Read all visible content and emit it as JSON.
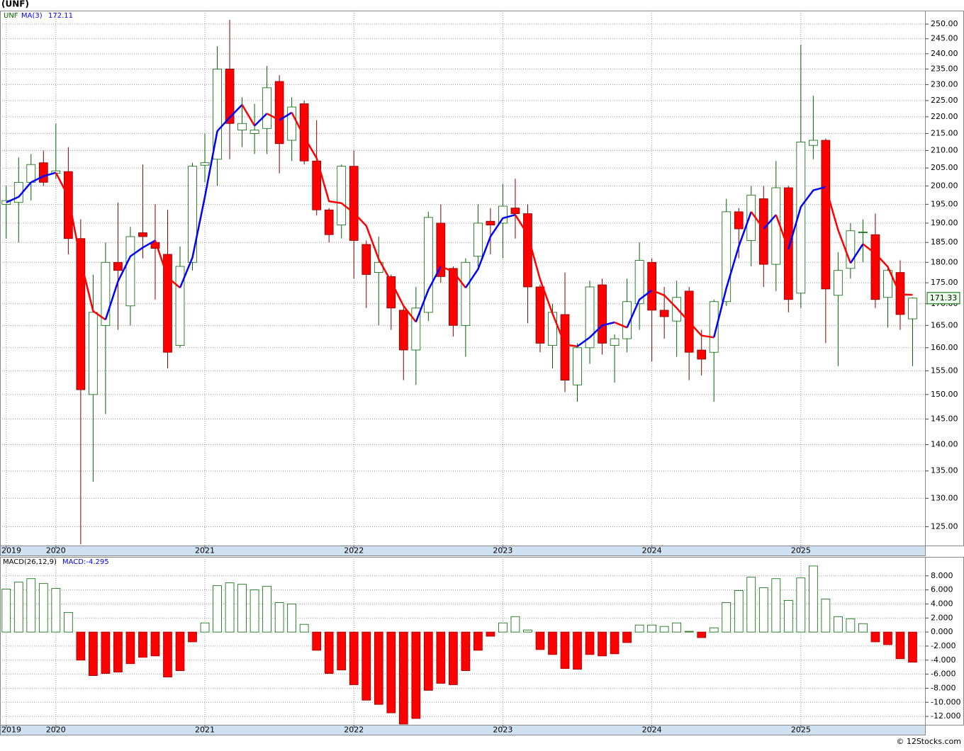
{
  "chart_data": [
    {
      "type": "candlestick",
      "title": "(UNF)",
      "log_scale": true,
      "grid": true,
      "xlim": [
        -0.5,
        74
      ],
      "xticks": [
        {
          "value": 0,
          "label": "2019"
        },
        {
          "value": 4,
          "label": "2020"
        },
        {
          "value": 16,
          "label": "2021"
        },
        {
          "value": 28,
          "label": "2022"
        },
        {
          "value": 40,
          "label": "2023"
        },
        {
          "value": 52,
          "label": "2024"
        },
        {
          "value": 64,
          "label": "2025"
        }
      ],
      "ylim": [
        121.8,
        254.7
      ],
      "yticks": [
        {
          "value": 125,
          "label": "125.00"
        },
        {
          "value": 130,
          "label": "130.00"
        },
        {
          "value": 135,
          "label": "135.00"
        },
        {
          "value": 140,
          "label": "140.00"
        },
        {
          "value": 145,
          "label": "145.00"
        },
        {
          "value": 150,
          "label": "150.00"
        },
        {
          "value": 155,
          "label": "155.00"
        },
        {
          "value": 160,
          "label": "160.00"
        },
        {
          "value": 165,
          "label": "165.00"
        },
        {
          "value": 170,
          "label": "170.00"
        },
        {
          "value": 175,
          "label": "175.00"
        },
        {
          "value": 180,
          "label": "180.00"
        },
        {
          "value": 185,
          "label": "185.00"
        },
        {
          "value": 190,
          "label": "190.00"
        },
        {
          "value": 195,
          "label": "195.00"
        },
        {
          "value": 200,
          "label": "200.00"
        },
        {
          "value": 205,
          "label": "205.00"
        },
        {
          "value": 210,
          "label": "210.00"
        },
        {
          "value": 215,
          "label": "215.00"
        },
        {
          "value": 220,
          "label": "220.00"
        },
        {
          "value": 225,
          "label": "225.00"
        },
        {
          "value": 230,
          "label": "230.00"
        },
        {
          "value": 235,
          "label": "235.00"
        },
        {
          "value": 240,
          "label": "240.00"
        },
        {
          "value": 245,
          "label": "245.00"
        },
        {
          "value": 250,
          "label": "250.00"
        }
      ],
      "series": [
        {
          "name": "UNF",
          "color": "#006400",
          "down_color": "#ff0000",
          "wick_down_color": "#800000",
          "open": [
            195,
            195.5,
            201,
            206.5,
            203.5,
            204,
            186,
            150,
            165,
            180,
            169.5,
            187.5,
            185,
            182,
            160.5,
            180,
            205.8,
            207.5,
            235,
            216,
            215,
            216.5,
            231,
            213,
            224,
            207,
            193.5,
            189.5,
            205.5,
            184.5,
            177.5,
            176.5,
            168.5,
            159.5,
            168,
            190,
            178.5,
            165,
            181.5,
            190.5,
            190,
            194,
            192.5,
            174,
            160.5,
            167.5,
            152,
            160,
            174.5,
            160.5,
            162,
            170,
            180,
            168.5,
            166,
            173,
            159.5,
            159,
            170.5,
            193,
            185.5,
            196.5,
            179.5,
            199.5,
            172.5,
            211.5,
            213,
            172,
            178.5,
            187.5,
            187,
            171.5,
            177.5,
            166.5
          ],
          "high": [
            200,
            208,
            209,
            210,
            218,
            211,
            191,
            177,
            185,
            195.5,
            189,
            206,
            195,
            193.5,
            184,
            206.5,
            215,
            242.5,
            251.5,
            226,
            224,
            236,
            233,
            226,
            225,
            219,
            194,
            206,
            210,
            185.5,
            186.5,
            177,
            169.5,
            174,
            193,
            195,
            179,
            181,
            195,
            194,
            200.5,
            202,
            195,
            174.5,
            170,
            177.5,
            161,
            175.5,
            176,
            163,
            176,
            185,
            181,
            174,
            175.5,
            174,
            164,
            171,
            196.5,
            194,
            200,
            200,
            207,
            200,
            243,
            226.5,
            213.5,
            182.5,
            190,
            191,
            192.5,
            178.5,
            180.5,
            171.5
          ],
          "low": [
            186,
            185,
            196,
            200,
            202,
            182,
            122,
            133,
            146,
            164,
            165,
            181,
            171,
            155.5,
            160,
            178,
            201,
            200,
            207.5,
            211,
            209,
            209,
            203.5,
            207,
            206,
            192,
            185,
            186,
            176,
            169,
            165,
            164,
            153,
            152,
            166,
            175,
            162.5,
            158,
            179,
            182,
            181,
            186,
            165.5,
            159,
            155.5,
            150.5,
            148.5,
            156.5,
            158.5,
            152.5,
            159,
            164,
            157,
            162,
            158,
            153,
            154,
            148.5,
            169.5,
            181,
            179,
            174,
            173,
            168,
            169,
            207.5,
            161,
            156,
            176,
            180,
            169,
            164.5,
            164,
            156
          ],
          "close": [
            196,
            201,
            206,
            201,
            204.2,
            186,
            151,
            168,
            180,
            178,
            186.5,
            186.5,
            183.5,
            159,
            179,
            205.5,
            206.5,
            235,
            218,
            218,
            216,
            229,
            212,
            223,
            207,
            193.5,
            187,
            205.5,
            185.5,
            177,
            180,
            169,
            159.5,
            169,
            191.5,
            176.5,
            165,
            180,
            190,
            189.5,
            194.5,
            192.5,
            174,
            161,
            168,
            153,
            160,
            174,
            161,
            162,
            170.5,
            180.5,
            168.5,
            167,
            171.5,
            159,
            157.5,
            170.5,
            193,
            188.5,
            197.5,
            179.5,
            199.5,
            171,
            212.5,
            213,
            173.5,
            178,
            188,
            187.7,
            171,
            178,
            167.5,
            171.33
          ]
        },
        {
          "name": "MA(3)",
          "color": "#0000ff",
          "down_color": "#ff0000",
          "values": [
            195.5,
            197,
            201,
            202.7,
            203.7,
            197.1,
            180.4,
            168.3,
            166.3,
            175.3,
            181.5,
            183.7,
            185.5,
            176.3,
            173.8,
            181.2,
            197,
            215.7,
            219.8,
            223.7,
            217.3,
            221,
            219,
            221.3,
            214,
            207.8,
            195.8,
            195.3,
            192.7,
            189.3,
            180.8,
            175.3,
            169.5,
            165.8,
            173.3,
            179,
            177.7,
            173.8,
            178.3,
            186.5,
            191.3,
            192.2,
            187,
            175.8,
            167.7,
            160.7,
            160.3,
            162.3,
            165,
            165.7,
            164.5,
            171,
            173.2,
            172,
            169,
            165.8,
            162.7,
            162.3,
            173.7,
            184,
            193,
            188.5,
            192.2,
            183.3,
            194.3,
            198.8,
            199.7,
            188.2,
            179.8,
            184.6,
            182.2,
            178.9,
            172.2,
            172.11
          ]
        }
      ]
    },
    {
      "type": "bar",
      "title": "MACD(26,12,9)",
      "grid": true,
      "xlim": [
        -0.5,
        74
      ],
      "xticks": [
        {
          "value": 0,
          "label": "2019"
        },
        {
          "value": 4,
          "label": "2020"
        },
        {
          "value": 16,
          "label": "2021"
        },
        {
          "value": 28,
          "label": "2022"
        },
        {
          "value": 40,
          "label": "2023"
        },
        {
          "value": 52,
          "label": "2024"
        },
        {
          "value": 64,
          "label": "2025"
        }
      ],
      "ylim": [
        -13.2,
        10.7
      ],
      "yticks": [
        {
          "value": 8,
          "label": "8.000"
        },
        {
          "value": 6,
          "label": "6.000"
        },
        {
          "value": 4,
          "label": "4.000"
        },
        {
          "value": 2,
          "label": "2.000"
        },
        {
          "value": 0,
          "label": "0.000"
        },
        {
          "value": -2,
          "label": "-2.000"
        },
        {
          "value": -4,
          "label": "-4.000"
        },
        {
          "value": -6,
          "label": "-6.000"
        },
        {
          "value": -8,
          "label": "-8.000"
        },
        {
          "value": -10,
          "label": "-10.000"
        },
        {
          "value": -12,
          "label": "-12.000"
        }
      ],
      "series": [
        {
          "name": "MACD:",
          "color": "#006400",
          "down_color": "#ff0000",
          "values": [
            6.1,
            7.1,
            7.6,
            6.9,
            6.2,
            2.8,
            -4,
            -6.2,
            -5.9,
            -5.7,
            -4.5,
            -3.6,
            -3.4,
            -6.4,
            -5.5,
            -1.4,
            1.3,
            6.6,
            7,
            6.8,
            6,
            6.5,
            4.2,
            4,
            1.1,
            -2.6,
            -5.9,
            -5.4,
            -7.5,
            -9.7,
            -10.3,
            -11.5,
            -13.1,
            -12.3,
            -8.3,
            -7.3,
            -7.5,
            -5.5,
            -2.6,
            -0.6,
            1.3,
            2.2,
            0.3,
            -2.5,
            -3.2,
            -5.2,
            -5.3,
            -3.2,
            -3.4,
            -3.1,
            -1.5,
            1,
            1,
            0.8,
            1.3,
            0.1,
            -0.8,
            0.6,
            4.2,
            5.9,
            7.8,
            6.3,
            7.6,
            4.5,
            7.7,
            9.4,
            4.7,
            2.2,
            1.9,
            1.2,
            -1.4,
            -1.8,
            -3.8,
            -4.295
          ]
        }
      ]
    }
  ],
  "footer": "© 12Stocks.com"
}
